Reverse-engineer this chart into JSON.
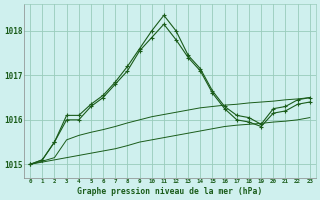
{
  "title": "Graphe pression niveau de la mer (hPa)",
  "background_color": "#cff0ee",
  "grid_color": "#99ccbb",
  "line_color": "#1a5c1a",
  "xlim": [
    -0.5,
    23.5
  ],
  "ylim": [
    1014.7,
    1018.6
  ],
  "yticks": [
    1015,
    1016,
    1017,
    1018
  ],
  "x_labels": [
    "0",
    "1",
    "2",
    "3",
    "4",
    "5",
    "6",
    "7",
    "8",
    "9",
    "10",
    "11",
    "12",
    "13",
    "14",
    "15",
    "16",
    "17",
    "18",
    "19",
    "20",
    "21",
    "22",
    "23"
  ],
  "series_flat1": [
    1015.0,
    1015.05,
    1015.1,
    1015.15,
    1015.2,
    1015.25,
    1015.3,
    1015.35,
    1015.42,
    1015.5,
    1015.55,
    1015.6,
    1015.65,
    1015.7,
    1015.75,
    1015.8,
    1015.85,
    1015.88,
    1015.9,
    1015.92,
    1015.95,
    1015.97,
    1016.0,
    1016.05
  ],
  "series_flat2": [
    1015.0,
    1015.07,
    1015.15,
    1015.55,
    1015.65,
    1015.72,
    1015.78,
    1015.85,
    1015.93,
    1016.0,
    1016.07,
    1016.12,
    1016.17,
    1016.22,
    1016.27,
    1016.3,
    1016.33,
    1016.35,
    1016.38,
    1016.4,
    1016.42,
    1016.45,
    1016.47,
    1016.5
  ],
  "series_main1": [
    1015.0,
    1015.1,
    1015.5,
    1016.0,
    1016.0,
    1016.3,
    1016.5,
    1016.8,
    1017.1,
    1017.55,
    1017.85,
    1018.15,
    1017.8,
    1017.4,
    1017.1,
    1016.6,
    1016.25,
    1016.0,
    1015.95,
    1015.85,
    1016.15,
    1016.2,
    1016.35,
    1016.4
  ],
  "series_main2": [
    1015.0,
    1015.1,
    1015.5,
    1016.1,
    1016.1,
    1016.35,
    1016.55,
    1016.85,
    1017.2,
    1017.6,
    1018.0,
    1018.35,
    1018.0,
    1017.45,
    1017.15,
    1016.65,
    1016.3,
    1016.1,
    1016.05,
    1015.9,
    1016.25,
    1016.3,
    1016.45,
    1016.5
  ]
}
